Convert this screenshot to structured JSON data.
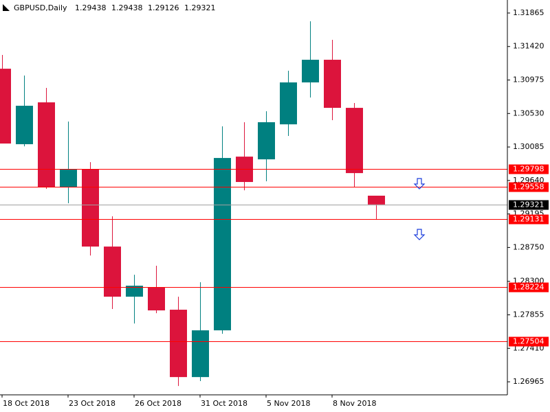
{
  "chart_data": {
    "type": "candlestick",
    "title": "GBPUSD,Daily",
    "categories": [
      "18 Oct 2018",
      null,
      null,
      "23 Oct 2018",
      null,
      null,
      "26 Oct 2018",
      null,
      null,
      "31 Oct 2018",
      null,
      null,
      "5 Nov 2018",
      null,
      null,
      "8 Nov 2018",
      null,
      null
    ],
    "open": [
      1.31125,
      1.30122,
      1.30678,
      1.29556,
      1.29793,
      1.28762,
      1.28096,
      1.28215,
      1.27923,
      1.27028,
      1.27649,
      1.29957,
      1.29921,
      1.30386,
      1.30943,
      1.31244,
      1.30605,
      1.29438
    ],
    "high": [
      1.31308,
      1.31034,
      1.3087,
      1.30423,
      1.29884,
      1.29164,
      1.28388,
      1.28507,
      1.28096,
      1.28288,
      1.30359,
      1.30414,
      1.3056,
      1.31098,
      1.31755,
      1.31509,
      1.30669,
      1.29438
    ],
    "low": [
      1.30131,
      1.30094,
      1.29529,
      1.29337,
      1.28643,
      1.27932,
      1.2774,
      1.27877,
      1.2691,
      1.26974,
      1.27603,
      1.2951,
      1.29629,
      1.30231,
      1.30742,
      1.30441,
      1.29556,
      1.29126
    ],
    "close": [
      1.30131,
      1.30633,
      1.29556,
      1.29793,
      1.28762,
      1.28096,
      1.28242,
      1.27914,
      1.27028,
      1.27649,
      1.29939,
      1.2962,
      1.30414,
      1.30943,
      1.31244,
      1.30605,
      1.29738,
      1.29321
    ],
    "up_color": "#008080",
    "down_color": "#dc143c",
    "ylim": [
      1.26792,
      1.32038
    ],
    "yticks": [
      1.31865,
      {
        "value": 1.3142,
        "label": "1.31420"
      },
      1.30975,
      {
        "value": 1.3053,
        "label": "1.30530"
      },
      1.30085,
      {
        "value": 1.2964,
        "label": "1.29640"
      },
      1.29195,
      {
        "value": 1.2875,
        "label": "1.28750"
      },
      {
        "value": 1.283,
        "label": "1.28300"
      },
      1.27855,
      {
        "value": 1.2741,
        "label": "1.27410"
      },
      1.26965
    ],
    "levels": [
      1.29798,
      1.29558,
      1.29131,
      1.28224,
      1.27504
    ],
    "level_color": "#ff0000",
    "current_color": "#a0a0a0"
  }
}
